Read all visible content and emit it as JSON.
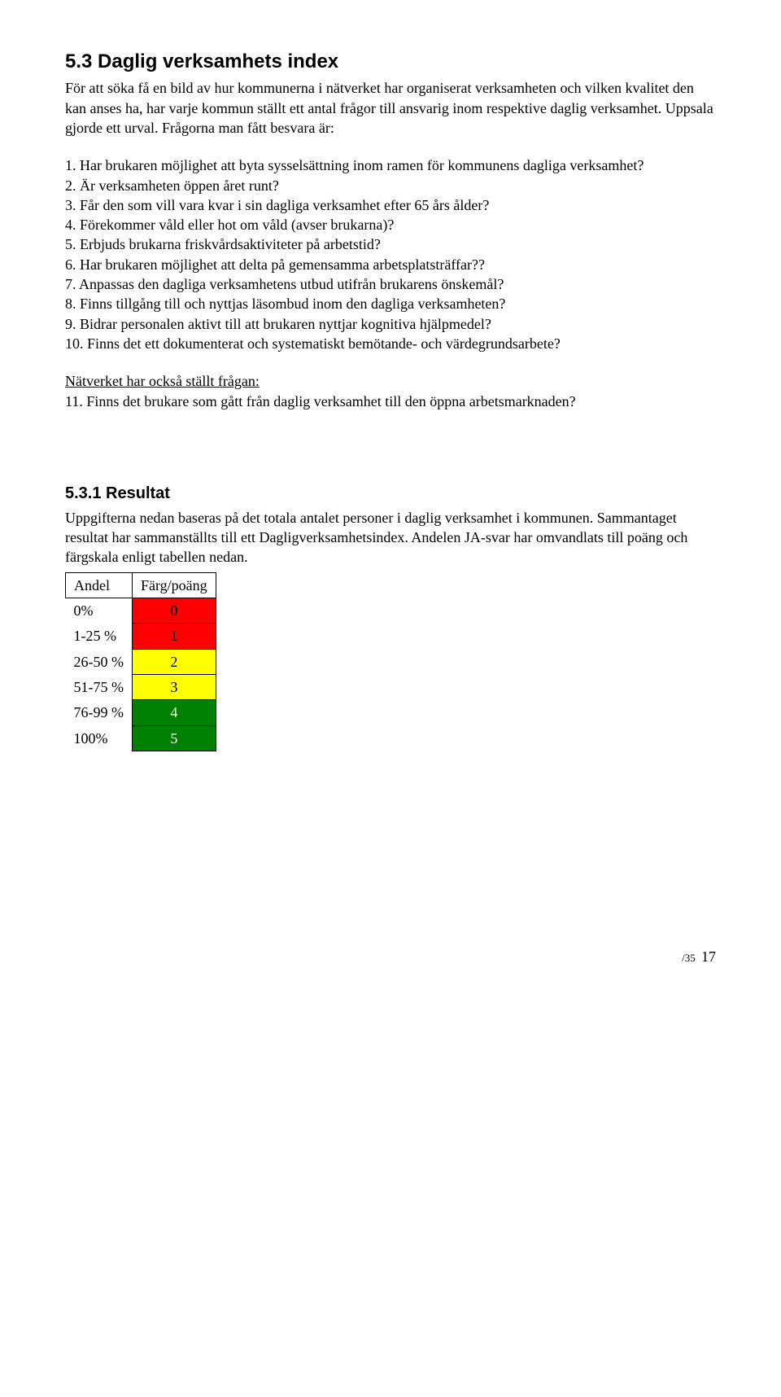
{
  "heading1": "5.3 Daglig verksamhets index",
  "intro": "För att söka få en bild av hur kommunerna i nätverket har organiserat verksamheten och vilken kvalitet den kan anses ha, har varje kommun ställt ett antal frågor till ansvarig inom respektive daglig verksamhet. Uppsala gjorde ett urval. Frågorna man fått besvara är:",
  "questions": [
    "1. Har brukaren möjlighet att byta sysselsättning inom ramen för kommunens dagliga verksamhet?",
    "2. Är verksamheten öppen året runt?",
    "3. Får den som vill vara kvar i sin dagliga verksamhet efter 65 års ålder?",
    "4. Förekommer våld eller hot om våld (avser brukarna)?",
    "5. Erbjuds brukarna friskvårdsaktiviteter på arbetstid?",
    "6. Har brukaren möjlighet att delta på gemensamma arbetsplatsträffar??",
    "7. Anpassas den dagliga verksamhetens utbud utifrån brukarens önskemål?",
    "8. Finns tillgång till och nyttjas läsombud inom den dagliga verksamheten?",
    "9. Bidrar personalen aktivt till att brukaren nyttjar kognitiva hjälpmedel?",
    "10. Finns det ett dokumenterat och systematiskt bemötande- och värdegrundsarbete?"
  ],
  "subhead": "Nätverket har också ställt frågan:",
  "q11": "11. Finns det brukare som gått från daglig verksamhet till den öppna arbetsmarknaden?",
  "heading2": "5.3.1 Resultat",
  "result_intro": "Uppgifterna nedan baseras på det totala antalet personer i daglig verksamhet i kommunen. Sammantaget resultat har sammanställts till ett Dagligverksamhetsindex. Andelen JA-svar har omvandlats till poäng och färgskala enligt tabellen nedan.",
  "legend": {
    "headers": [
      "Andel",
      "Färg/poäng"
    ],
    "rows": [
      {
        "label": "0%",
        "value": "0",
        "color": "#ff0000",
        "text": "#000000"
      },
      {
        "label": "1-25 %",
        "value": "1",
        "color": "#ff0000",
        "text": "#000000"
      },
      {
        "label": "26-50 %",
        "value": "2",
        "color": "#ffff00",
        "text": "#000000"
      },
      {
        "label": "51-75 %",
        "value": "3",
        "color": "#ffff00",
        "text": "#000000"
      },
      {
        "label": "76-99 %",
        "value": "4",
        "color": "#008000",
        "text": "#ffffff"
      },
      {
        "label": "100%",
        "value": "5",
        "color": "#008000",
        "text": "#ffffff"
      }
    ]
  },
  "footer": {
    "small": "/35",
    "page": "17"
  }
}
